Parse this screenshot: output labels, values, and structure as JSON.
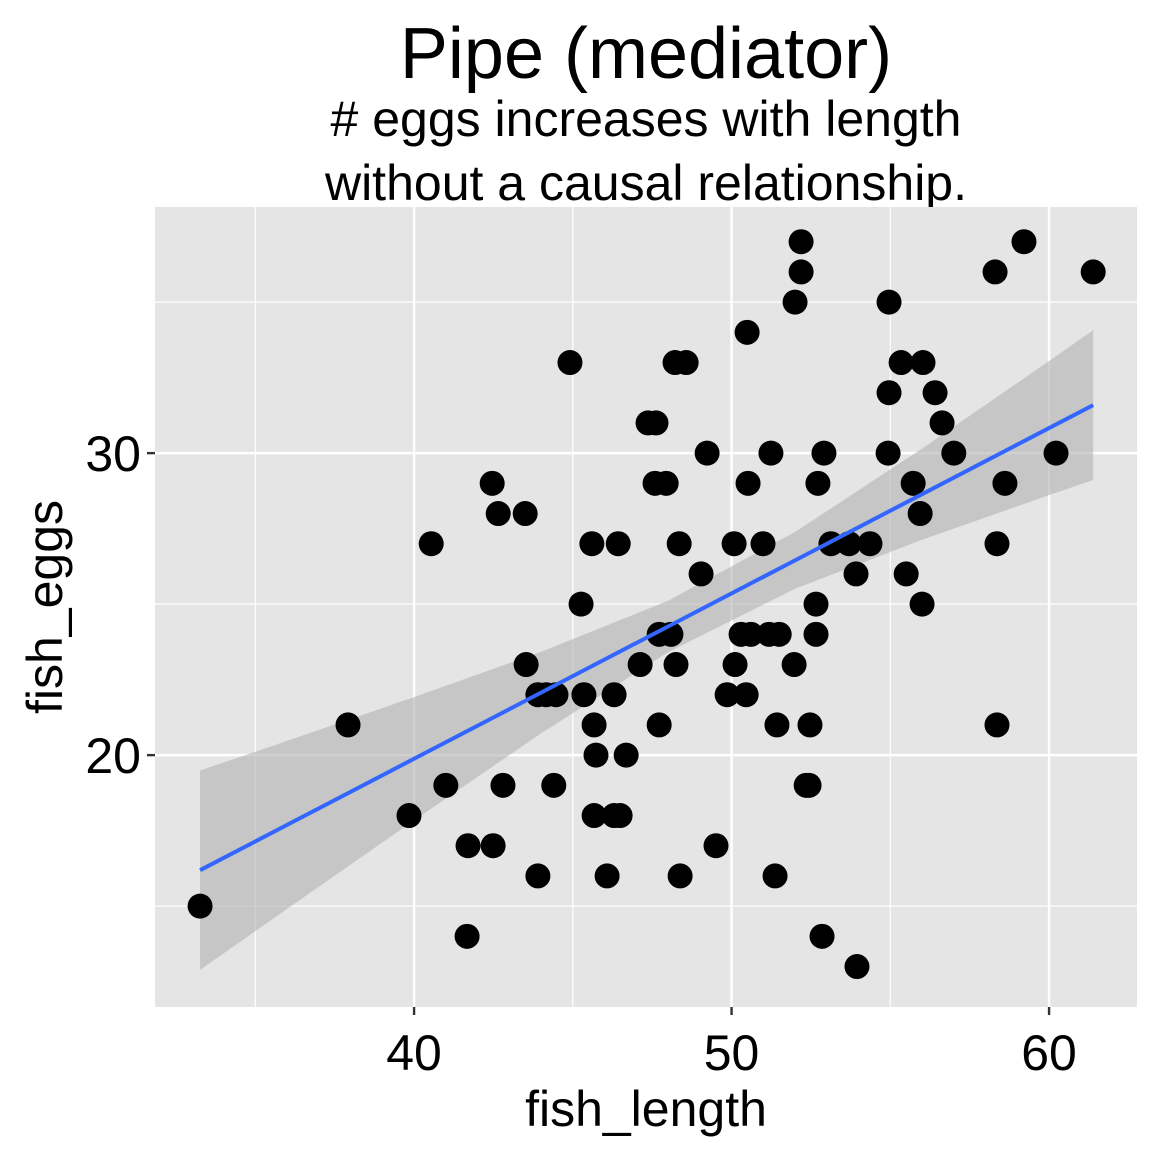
{
  "chart_data": {
    "type": "scatter",
    "title": "Pipe (mediator)",
    "subtitle_lines": [
      "# eggs increases with length",
      "without a causal relationship."
    ],
    "xlabel": "fish_length",
    "ylabel": "fish_eggs",
    "xlim": [
      31.84,
      62.77
    ],
    "ylim": [
      11.66,
      38.15
    ],
    "x_ticks": [
      40,
      50,
      60
    ],
    "y_ticks": [
      20,
      30
    ],
    "x_minor": [
      35,
      45,
      55
    ],
    "y_minor": [
      15,
      25,
      35
    ],
    "grid": true,
    "colors": {
      "panel": "#e5e5e5",
      "grid": "#ffffff",
      "point": "#000000",
      "line": "#3366ff",
      "ribbon": "#b0b0b0"
    },
    "points": [
      [
        33.26,
        15
      ],
      [
        37.92,
        21
      ],
      [
        39.84,
        18
      ],
      [
        40.54,
        27
      ],
      [
        41.0,
        19
      ],
      [
        41.67,
        14
      ],
      [
        41.7,
        17
      ],
      [
        42.46,
        29
      ],
      [
        42.49,
        17
      ],
      [
        42.65,
        28
      ],
      [
        42.8,
        19
      ],
      [
        43.5,
        28
      ],
      [
        43.53,
        23
      ],
      [
        43.9,
        16
      ],
      [
        43.9,
        22
      ],
      [
        44.16,
        22
      ],
      [
        44.47,
        22
      ],
      [
        44.4,
        19
      ],
      [
        44.91,
        33
      ],
      [
        45.26,
        25
      ],
      [
        45.35,
        22
      ],
      [
        45.6,
        27
      ],
      [
        45.67,
        21
      ],
      [
        45.73,
        20
      ],
      [
        45.67,
        18
      ],
      [
        46.08,
        16
      ],
      [
        46.3,
        22
      ],
      [
        46.3,
        18
      ],
      [
        46.49,
        18
      ],
      [
        46.43,
        27
      ],
      [
        46.68,
        20
      ],
      [
        47.12,
        23
      ],
      [
        47.37,
        31
      ],
      [
        47.62,
        31
      ],
      [
        47.59,
        29
      ],
      [
        47.72,
        24
      ],
      [
        47.72,
        21
      ],
      [
        47.94,
        29
      ],
      [
        48.09,
        24
      ],
      [
        48.22,
        33
      ],
      [
        48.57,
        33
      ],
      [
        48.25,
        23
      ],
      [
        48.35,
        27
      ],
      [
        48.38,
        16
      ],
      [
        49.04,
        26
      ],
      [
        49.23,
        30
      ],
      [
        49.51,
        17
      ],
      [
        49.86,
        22
      ],
      [
        50.08,
        27
      ],
      [
        50.11,
        23
      ],
      [
        50.3,
        24
      ],
      [
        50.49,
        34
      ],
      [
        50.46,
        22
      ],
      [
        50.52,
        29
      ],
      [
        50.61,
        24
      ],
      [
        50.99,
        27
      ],
      [
        51.18,
        24
      ],
      [
        51.24,
        30
      ],
      [
        51.43,
        21
      ],
      [
        51.37,
        16
      ],
      [
        51.5,
        24
      ],
      [
        51.97,
        23
      ],
      [
        52.0,
        35
      ],
      [
        52.19,
        36
      ],
      [
        52.19,
        37
      ],
      [
        52.35,
        19
      ],
      [
        52.44,
        19
      ],
      [
        52.47,
        21
      ],
      [
        52.66,
        24
      ],
      [
        52.66,
        25
      ],
      [
        52.72,
        29
      ],
      [
        52.85,
        14
      ],
      [
        52.91,
        30
      ],
      [
        53.13,
        27
      ],
      [
        53.7,
        27
      ],
      [
        53.92,
        26
      ],
      [
        53.95,
        13
      ],
      [
        54.36,
        27
      ],
      [
        54.93,
        30
      ],
      [
        54.96,
        32
      ],
      [
        54.96,
        35
      ],
      [
        55.34,
        33
      ],
      [
        55.5,
        26
      ],
      [
        55.72,
        29
      ],
      [
        55.94,
        28
      ],
      [
        56.0,
        25
      ],
      [
        56.03,
        33
      ],
      [
        56.41,
        32
      ],
      [
        56.63,
        31
      ],
      [
        57.0,
        30
      ],
      [
        58.3,
        36
      ],
      [
        58.36,
        21
      ],
      [
        58.36,
        27
      ],
      [
        58.61,
        29
      ],
      [
        59.21,
        37
      ],
      [
        60.22,
        30
      ],
      [
        61.39,
        36
      ]
    ],
    "fit": {
      "method": "lm",
      "x": [
        33.26,
        36,
        40,
        44,
        48,
        52,
        56,
        60,
        61.39
      ],
      "y": [
        16.19,
        17.69,
        19.88,
        22.07,
        24.26,
        26.45,
        28.64,
        30.83,
        31.59
      ],
      "ymin": [
        12.89,
        14.91,
        17.84,
        20.72,
        23.41,
        25.51,
        27.13,
        28.61,
        29.11
      ],
      "ymax": [
        19.49,
        20.47,
        21.92,
        23.42,
        25.11,
        27.39,
        30.15,
        33.05,
        34.07
      ]
    }
  }
}
